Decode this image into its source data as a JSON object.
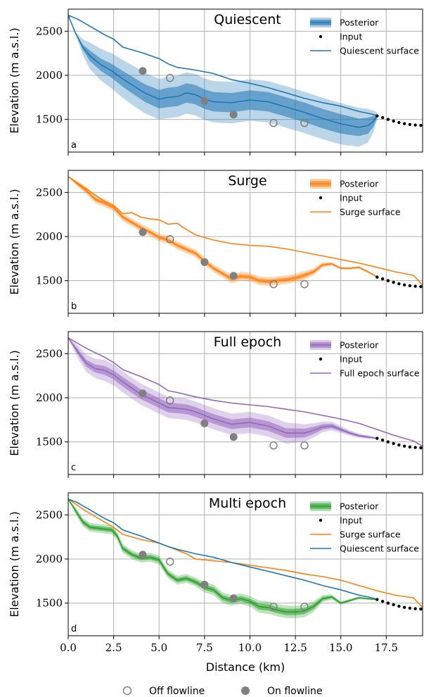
{
  "chart_data": {
    "type": "line",
    "xlabel": "Distance (km)",
    "ylabel": "Elevation (m a.s.l.)",
    "xlim": [
      0,
      19.5
    ],
    "ylim": [
      1130,
      2750
    ],
    "xticks": [
      0,
      2.5,
      5,
      7.5,
      10,
      12.5,
      15,
      17.5
    ],
    "xtick_labels": [
      "0.0",
      "2.5",
      "5.0",
      "7.5",
      "10.0",
      "12.5",
      "15.0",
      "17.5"
    ],
    "yticks": [
      1500,
      2000,
      2500
    ],
    "ytick_labels": [
      "1500",
      "2000",
      "2500"
    ],
    "grid": true,
    "colors": {
      "quiescent": "#1f77b4",
      "surge": "#ff7f0e",
      "full": "#9467bd",
      "multi": "#2ca02c",
      "points": "#808080",
      "input": "#000000"
    },
    "input_points": {
      "x": [
        17.0,
        17.3,
        17.6,
        17.9,
        18.2,
        18.5,
        18.8,
        19.1,
        19.4
      ],
      "y": [
        1540,
        1520,
        1500,
        1482,
        1465,
        1452,
        1443,
        1437,
        1433
      ]
    },
    "off_flowline": {
      "x": [
        5.6,
        11.3,
        13.0
      ],
      "y": [
        1970,
        1460,
        1460
      ]
    },
    "on_flowline": {
      "x": [
        4.1,
        7.5,
        9.1
      ],
      "y": [
        2050,
        1710,
        1555
      ]
    },
    "panels": [
      {
        "letter": "a",
        "title": "Quiescent",
        "legend": [
          "Posterior",
          "Input",
          "Quiescent surface"
        ],
        "posterior_color": "#1f77b4",
        "posterior": {
          "x": [
            0,
            0.4,
            0.8,
            1.2,
            1.8,
            2.4,
            3.0,
            3.6,
            4.2,
            5.0,
            5.5,
            6.0,
            6.5,
            7.0,
            7.5,
            8.0,
            9.0,
            10.0,
            11.0,
            12.0,
            13.0,
            14.0,
            15.0,
            16.0,
            16.5,
            16.8,
            17.0
          ],
          "y": [
            2680,
            2480,
            2320,
            2220,
            2120,
            2050,
            1960,
            1880,
            1800,
            1730,
            1750,
            1760,
            1800,
            1780,
            1730,
            1700,
            1690,
            1720,
            1700,
            1640,
            1580,
            1510,
            1450,
            1410,
            1430,
            1480,
            1540
          ],
          "inner": [
            0,
            0,
            30,
            60,
            70,
            80,
            90,
            95,
            100,
            105,
            110,
            110,
            110,
            110,
            110,
            110,
            110,
            110,
            110,
            110,
            110,
            110,
            110,
            100,
            90,
            60,
            20
          ],
          "outer": [
            0,
            10,
            90,
            150,
            180,
            200,
            215,
            225,
            230,
            230,
            235,
            235,
            235,
            235,
            235,
            235,
            235,
            235,
            235,
            235,
            235,
            235,
            235,
            220,
            190,
            120,
            40
          ]
        },
        "surfaces": [
          {
            "name": "Quiescent surface",
            "color": "#1f77b4",
            "x": [
              0,
              0.5,
              1.0,
              2.0,
              2.5,
              3.0,
              4.0,
              5.0,
              5.5,
              6.0,
              7.0,
              8.0,
              9.0,
              10.0,
              11.0,
              12.0,
              13.0,
              14.0,
              15.0,
              16.0,
              16.5,
              17.0
            ],
            "y": [
              2680,
              2640,
              2580,
              2460,
              2410,
              2320,
              2260,
              2190,
              2130,
              2090,
              2060,
              2020,
              1950,
              1910,
              1860,
              1800,
              1740,
              1690,
              1650,
              1590,
              1570,
              1545
            ]
          }
        ]
      },
      {
        "letter": "b",
        "title": "Surge",
        "legend": [
          "Posterior",
          "Input",
          "Surge surface"
        ],
        "posterior_color": "#ff7f0e",
        "posterior": {
          "x": [
            0,
            0.5,
            1.0,
            1.5,
            2.0,
            2.5,
            3.0,
            3.5,
            4.0,
            4.5,
            5.0,
            5.5,
            6.0,
            7.0,
            7.5,
            8.0,
            8.5,
            9.0,
            9.5,
            10.0,
            10.5,
            11.0,
            11.5,
            12.0,
            12.5,
            13.0,
            13.5,
            14.0,
            14.5,
            15.0,
            15.5,
            16.0,
            16.5,
            17.0
          ],
          "y": [
            2680,
            2600,
            2520,
            2420,
            2380,
            2330,
            2220,
            2160,
            2100,
            2050,
            1990,
            1960,
            1900,
            1810,
            1720,
            1640,
            1580,
            1520,
            1550,
            1540,
            1500,
            1490,
            1500,
            1510,
            1530,
            1560,
            1600,
            1680,
            1690,
            1640,
            1640,
            1650,
            1600,
            1540
          ],
          "inner": [
            0,
            15,
            20,
            20,
            20,
            20,
            20,
            20,
            20,
            20,
            20,
            20,
            20,
            20,
            20,
            20,
            20,
            25,
            25,
            25,
            25,
            25,
            25,
            25,
            25,
            25,
            20,
            15,
            10,
            8,
            8,
            8,
            8,
            5
          ],
          "outer": [
            0,
            30,
            40,
            45,
            45,
            45,
            45,
            45,
            45,
            45,
            45,
            45,
            45,
            45,
            45,
            45,
            45,
            50,
            50,
            50,
            50,
            50,
            50,
            50,
            50,
            50,
            40,
            30,
            20,
            15,
            15,
            15,
            15,
            10
          ]
        },
        "surfaces": [
          {
            "name": "Surge surface",
            "color": "#ff7f0e",
            "x": [
              0,
              0.5,
              1.0,
              1.5,
              2.0,
              2.5,
              3.0,
              3.5,
              4.0,
              4.5,
              5.0,
              5.5,
              6.0,
              6.5,
              7.0,
              8.0,
              9.0,
              10.0,
              11.0,
              12.0,
              13.0,
              14.0,
              15.0,
              16.0,
              17.0,
              18.0,
              19.0,
              19.5
            ],
            "y": [
              2680,
              2610,
              2540,
              2470,
              2400,
              2350,
              2260,
              2270,
              2220,
              2200,
              2190,
              2140,
              2150,
              2080,
              2020,
              1960,
              1920,
              1900,
              1890,
              1860,
              1820,
              1780,
              1740,
              1700,
              1650,
              1600,
              1560,
              1450
            ]
          }
        ]
      },
      {
        "letter": "c",
        "title": "Full epoch",
        "legend": [
          "Posterior",
          "Input",
          "Full epoch surface"
        ],
        "posterior_color": "#9467bd",
        "posterior": {
          "x": [
            0,
            0.5,
            1.0,
            1.5,
            2.0,
            2.5,
            3.0,
            3.5,
            4.0,
            4.5,
            5.0,
            5.5,
            6.0,
            6.5,
            7.0,
            7.5,
            8.0,
            9.0,
            10.0,
            11.0,
            12.0,
            13.0,
            13.5,
            14.0,
            14.5,
            15.0,
            15.5,
            16.0,
            16.5,
            17.0
          ],
          "y": [
            2680,
            2530,
            2390,
            2330,
            2310,
            2260,
            2180,
            2110,
            2040,
            1990,
            1940,
            1890,
            1880,
            1870,
            1840,
            1800,
            1760,
            1700,
            1720,
            1680,
            1600,
            1600,
            1630,
            1670,
            1680,
            1640,
            1600,
            1570,
            1555,
            1540
          ],
          "inner": [
            0,
            30,
            40,
            45,
            50,
            50,
            55,
            55,
            55,
            55,
            55,
            55,
            55,
            55,
            55,
            55,
            55,
            55,
            55,
            55,
            55,
            50,
            40,
            30,
            25,
            20,
            15,
            12,
            10,
            5
          ],
          "outer": [
            0,
            70,
            100,
            110,
            120,
            120,
            120,
            120,
            120,
            120,
            120,
            120,
            120,
            120,
            120,
            120,
            120,
            120,
            120,
            120,
            120,
            100,
            80,
            60,
            50,
            40,
            30,
            25,
            20,
            10
          ]
        },
        "surfaces": [
          {
            "name": "Full epoch surface",
            "color": "#9467bd",
            "x": [
              0,
              0.5,
              1.0,
              2.0,
              2.5,
              3.0,
              4.0,
              5.0,
              5.5,
              6.0,
              7.0,
              8.0,
              9.0,
              10.0,
              11.0,
              12.0,
              13.0,
              14.0,
              15.0,
              16.0,
              17.0,
              18.0,
              19.0,
              19.5
            ],
            "y": [
              2680,
              2620,
              2560,
              2460,
              2400,
              2320,
              2240,
              2150,
              2080,
              2060,
              2010,
              1970,
              1940,
              1920,
              1900,
              1870,
              1840,
              1800,
              1760,
              1710,
              1640,
              1570,
              1510,
              1450
            ]
          }
        ]
      },
      {
        "letter": "d",
        "title": "Multi epoch",
        "legend": [
          "Posterior",
          "Input",
          "Surge surface",
          "Quiescent surface"
        ],
        "posterior_color": "#2ca02c",
        "posterior": {
          "x": [
            0,
            0.4,
            0.8,
            1.2,
            2.0,
            2.4,
            2.7,
            3.0,
            3.5,
            4.0,
            4.5,
            5.0,
            5.3,
            5.5,
            6.0,
            6.5,
            7.0,
            7.5,
            8.0,
            8.5,
            9.0,
            9.5,
            10.0,
            10.5,
            11.0,
            11.5,
            12.0,
            12.5,
            13.0,
            13.5,
            14.0,
            14.5,
            15.0,
            15.5,
            16.0,
            16.5,
            17.0
          ],
          "y": [
            2680,
            2550,
            2420,
            2360,
            2340,
            2330,
            2260,
            2120,
            2050,
            2010,
            2020,
            1990,
            1890,
            1830,
            1760,
            1780,
            1740,
            1680,
            1650,
            1560,
            1530,
            1550,
            1520,
            1460,
            1450,
            1420,
            1400,
            1400,
            1410,
            1460,
            1550,
            1570,
            1500,
            1530,
            1560,
            1550,
            1540
          ],
          "inner": [
            0,
            20,
            25,
            25,
            25,
            25,
            25,
            25,
            25,
            25,
            25,
            25,
            25,
            25,
            25,
            25,
            25,
            30,
            30,
            30,
            30,
            30,
            30,
            35,
            35,
            35,
            35,
            35,
            35,
            30,
            20,
            15,
            10,
            10,
            8,
            6,
            5
          ],
          "outer": [
            0,
            40,
            50,
            50,
            50,
            50,
            50,
            50,
            50,
            50,
            50,
            50,
            50,
            50,
            50,
            50,
            50,
            60,
            60,
            60,
            60,
            60,
            60,
            70,
            70,
            70,
            70,
            70,
            70,
            60,
            40,
            30,
            20,
            20,
            15,
            12,
            10
          ]
        },
        "surfaces": [
          {
            "name": "Surge surface",
            "color": "#ff7f0e",
            "x": [
              0,
              0.5,
              1.0,
              2.0,
              2.5,
              3.0,
              4.0,
              5.0,
              5.5,
              6.0,
              6.5,
              7.0,
              8.0,
              9.0,
              10.0,
              11.0,
              12.0,
              13.0,
              14.0,
              15.0,
              16.0,
              17.0,
              18.0,
              19.0,
              19.5
            ],
            "y": [
              2680,
              2610,
              2540,
              2420,
              2360,
              2280,
              2220,
              2180,
              2140,
              2100,
              2060,
              2000,
              1980,
              1960,
              1930,
              1900,
              1870,
              1830,
              1800,
              1760,
              1700,
              1640,
              1590,
              1560,
              1450
            ]
          },
          {
            "name": "Quiescent surface",
            "color": "#1f77b4",
            "x": [
              0,
              0.5,
              1.0,
              2.0,
              2.5,
              3.0,
              4.0,
              5.0,
              5.5,
              6.0,
              7.0,
              8.0,
              9.0,
              10.0,
              11.0,
              12.0,
              13.0,
              14.0,
              15.0,
              16.0,
              16.5,
              17.0
            ],
            "y": [
              2680,
              2640,
              2580,
              2460,
              2410,
              2330,
              2260,
              2180,
              2140,
              2110,
              2060,
              2020,
              1960,
              1910,
              1860,
              1810,
              1760,
              1700,
              1650,
              1590,
              1570,
              1545
            ]
          }
        ]
      }
    ],
    "bottom_legend": [
      "Off flowline",
      "On flowline"
    ]
  }
}
